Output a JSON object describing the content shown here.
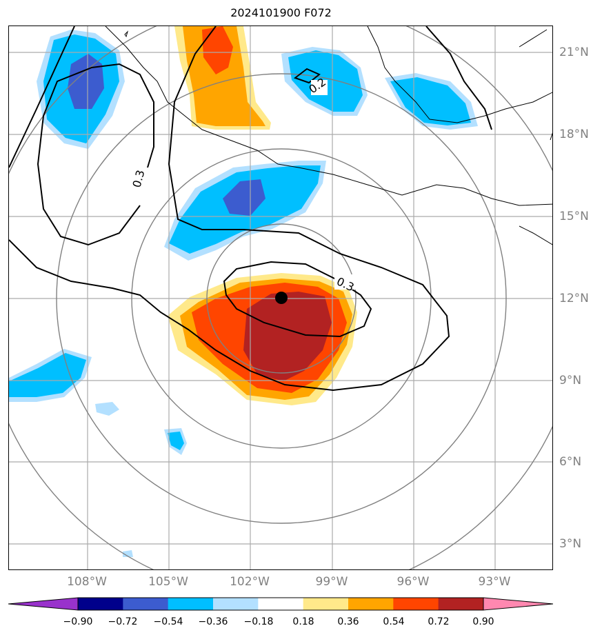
{
  "title": "2024101900 F072",
  "map": {
    "lat_labels": [
      "21°N",
      "18°N",
      "15°N",
      "12°N",
      "9°N",
      "6°N",
      "3°N"
    ],
    "lon_labels": [
      "108°W",
      "105°W",
      "102°W",
      "99°W",
      "96°W",
      "93°W"
    ],
    "contour_labels": [
      "0.3",
      "0.2",
      "0.3"
    ],
    "storm_center": {
      "lat": 12.0,
      "lon": "100.9°W"
    }
  },
  "colorbar": {
    "tick_labels": [
      "−0.90",
      "−0.72",
      "−0.54",
      "−0.36",
      "−0.18",
      "0.18",
      "0.36",
      "0.54",
      "0.72",
      "0.90"
    ],
    "colors": [
      "#9932cc",
      "#00008b",
      "#3c5ccf",
      "#00bfff",
      "#b3e0ff",
      "#ffffff",
      "#ffe98a",
      "#ffa500",
      "#ff4500",
      "#b22222",
      "#ff88b0"
    ]
  },
  "colors": {
    "grid": "#aaaaaa",
    "range_rings": "#808080",
    "coast": "#000000"
  }
}
